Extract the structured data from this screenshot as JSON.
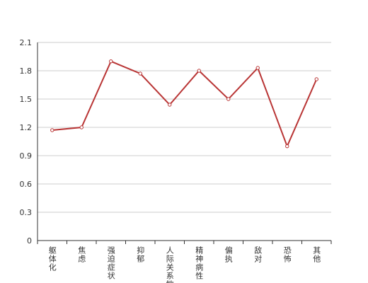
{
  "chart_data": {
    "type": "line",
    "categories": [
      "躯体化",
      "焦虑",
      "强迫症状",
      "抑郁",
      "人际关系敏感",
      "精神病性",
      "偏执",
      "敌对",
      "恐怖",
      "其他"
    ],
    "values": [
      1.17,
      1.2,
      1.9,
      1.77,
      1.44,
      1.8,
      1.5,
      1.83,
      1.0,
      1.71
    ],
    "color": "#b93535",
    "ylim": [
      0,
      2.1
    ],
    "yticks": [
      {
        "value": 0,
        "label": "0"
      },
      {
        "value": 0.3,
        "label": "0.3"
      },
      {
        "value": 0.6,
        "label": "0.6"
      },
      {
        "value": 0.9,
        "label": "0.9"
      },
      {
        "value": 1.2,
        "label": "1.2"
      },
      {
        "value": 1.5,
        "label": "1.5"
      },
      {
        "value": 1.8,
        "label": "1.8"
      },
      {
        "value": 2.1,
        "label": "2.1"
      }
    ],
    "grid": true
  }
}
